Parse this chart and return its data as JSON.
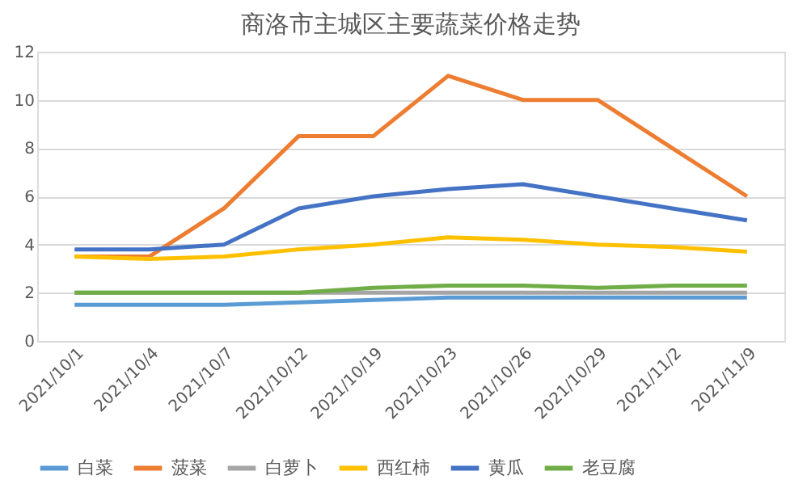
{
  "chart_data": {
    "type": "line",
    "title": "商洛市主城区主要蔬菜价格走势",
    "categories": [
      "2021/10/1",
      "2021/10/4",
      "2021/10/7",
      "2021/10/12",
      "2021/10/19",
      "2021/10/23",
      "2021/10/26",
      "2021/10/29",
      "2021/11/2",
      "2021/11/9"
    ],
    "series": [
      {
        "name": "白菜",
        "color": "#5b9bd5",
        "values": [
          1.5,
          1.5,
          1.5,
          1.6,
          1.7,
          1.8,
          1.8,
          1.8,
          1.8,
          1.8
        ]
      },
      {
        "name": "菠菜",
        "color": "#ed7d31",
        "values": [
          3.5,
          3.5,
          5.5,
          8.5,
          8.5,
          11,
          10,
          10,
          8,
          6
        ]
      },
      {
        "name": "白萝卜",
        "color": "#a5a5a5",
        "values": [
          2,
          2,
          2,
          2,
          2,
          2,
          2,
          2,
          2,
          2
        ]
      },
      {
        "name": "西红柿",
        "color": "#ffc000",
        "values": [
          3.5,
          3.4,
          3.5,
          3.8,
          4,
          4.3,
          4.2,
          4,
          3.9,
          3.7
        ]
      },
      {
        "name": "黄瓜",
        "color": "#4472c4",
        "values": [
          3.8,
          3.8,
          4,
          5.5,
          6,
          6.3,
          6.5,
          6,
          5.5,
          5
        ]
      },
      {
        "name": "老豆腐",
        "color": "#70ad47",
        "values": [
          2,
          2,
          2,
          2,
          2.2,
          2.3,
          2.3,
          2.2,
          2.3,
          2.3
        ]
      }
    ],
    "ylim": [
      0,
      12
    ],
    "yticks": [
      0,
      2,
      4,
      6,
      8,
      10,
      12
    ],
    "grid": "y",
    "legend": "bottom",
    "marker": "none",
    "line_style": "solid"
  }
}
